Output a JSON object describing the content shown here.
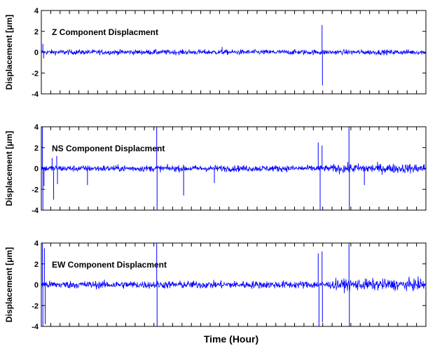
{
  "chart_data": [
    {
      "type": "line",
      "title": "Z Component Displacment",
      "ylabel": "Displacement [μm]",
      "xlabel": "",
      "ylim": [
        -4,
        4
      ],
      "yticks": [
        -4,
        -2,
        0,
        2,
        4
      ],
      "grid": false,
      "color": "#0000ff",
      "noise_amplitude": 0.12,
      "spikes": [
        {
          "x": 0.004,
          "y": 0.8
        },
        {
          "x": 0.006,
          "y": -0.6
        },
        {
          "x": 0.47,
          "y": 0.5
        },
        {
          "x": 0.73,
          "y": 2.6
        },
        {
          "x": 0.731,
          "y": -3.2
        }
      ]
    },
    {
      "type": "line",
      "title": "NS Component Displacment",
      "ylabel": "Displacement [μm]",
      "xlabel": "",
      "ylim": [
        -4,
        4
      ],
      "yticks": [
        -4,
        -2,
        0,
        2,
        4
      ],
      "grid": false,
      "color": "#0000ff",
      "noise_amplitude": 0.15,
      "spikes": [
        {
          "x": 0.003,
          "y": 4.0
        },
        {
          "x": 0.004,
          "y": -4.0
        },
        {
          "x": 0.007,
          "y": -1.7
        },
        {
          "x": 0.028,
          "y": 1.0
        },
        {
          "x": 0.032,
          "y": -3.0
        },
        {
          "x": 0.04,
          "y": 1.2
        },
        {
          "x": 0.042,
          "y": -1.5
        },
        {
          "x": 0.12,
          "y": -1.6
        },
        {
          "x": 0.3,
          "y": 4.0
        },
        {
          "x": 0.301,
          "y": -4.0
        },
        {
          "x": 0.37,
          "y": -2.6
        },
        {
          "x": 0.45,
          "y": -1.4
        },
        {
          "x": 0.72,
          "y": 2.5
        },
        {
          "x": 0.725,
          "y": -4.0
        },
        {
          "x": 0.73,
          "y": 2.2
        },
        {
          "x": 0.8,
          "y": 4.0
        },
        {
          "x": 0.801,
          "y": -4.0
        },
        {
          "x": 0.84,
          "y": -1.6
        }
      ]
    },
    {
      "type": "line",
      "title": "EW Component Displacment",
      "ylabel": "Displacement [μm]",
      "xlabel": "Time (Hour)",
      "ylim": [
        -4,
        4
      ],
      "yticks": [
        -4,
        -2,
        0,
        2,
        4
      ],
      "grid": false,
      "color": "#0000ff",
      "noise_amplitude": 0.18,
      "spikes": [
        {
          "x": 0.003,
          "y": 4.0
        },
        {
          "x": 0.004,
          "y": -4.0
        },
        {
          "x": 0.008,
          "y": 3.5
        },
        {
          "x": 0.01,
          "y": -3.8
        },
        {
          "x": 0.3,
          "y": 4.0
        },
        {
          "x": 0.301,
          "y": -4.0
        },
        {
          "x": 0.72,
          "y": 3.0
        },
        {
          "x": 0.722,
          "y": -4.0
        },
        {
          "x": 0.73,
          "y": 3.2
        },
        {
          "x": 0.731,
          "y": -3.6
        },
        {
          "x": 0.8,
          "y": 4.0
        },
        {
          "x": 0.801,
          "y": -4.0
        }
      ]
    }
  ]
}
